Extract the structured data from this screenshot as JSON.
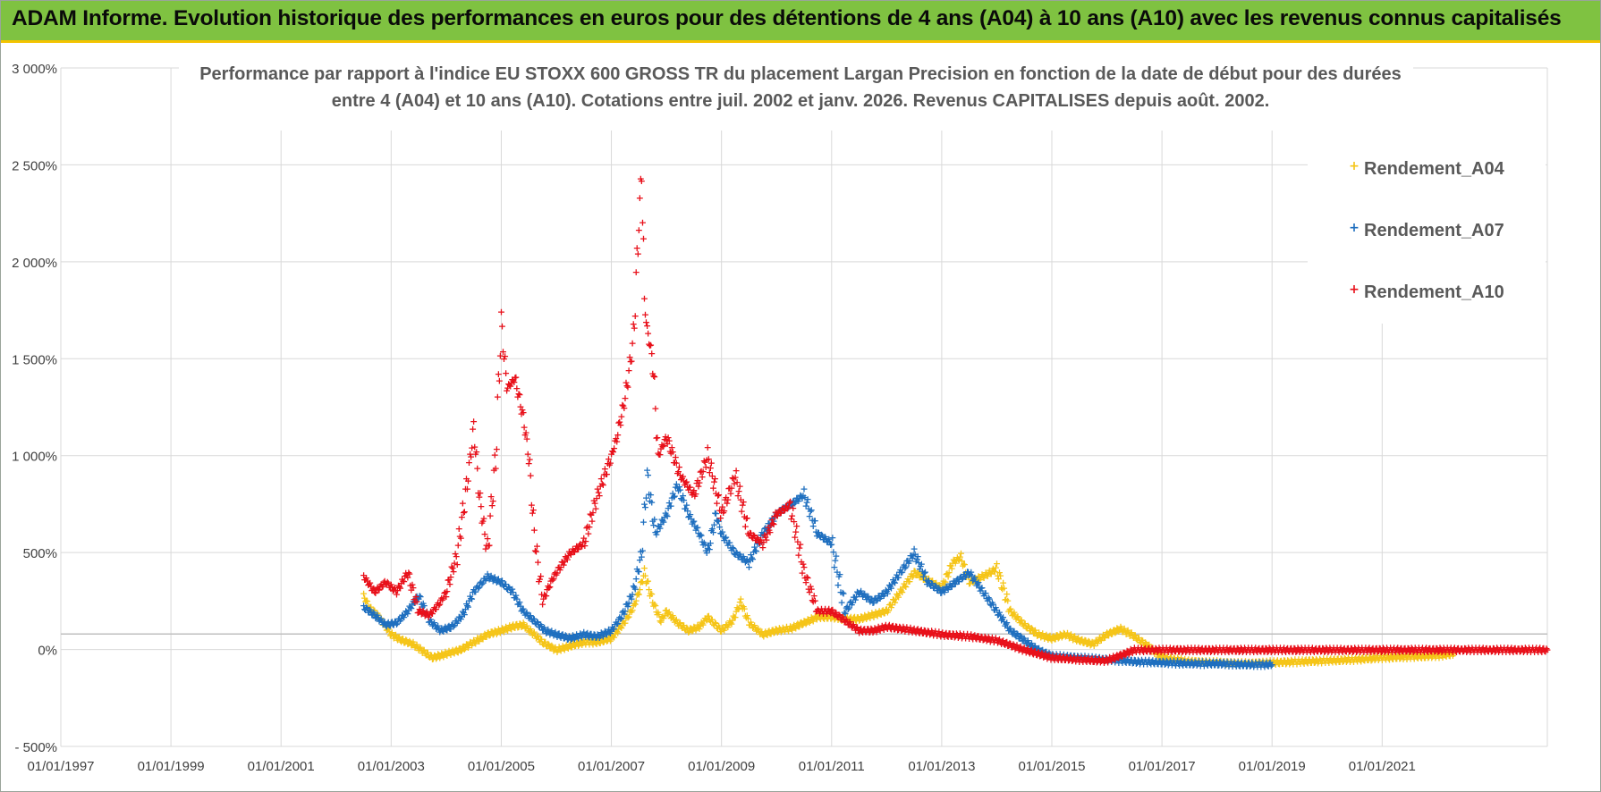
{
  "banner": {
    "title": "ADAM Informe. Evolution historique des performances en euros pour des détentions de 4 ans (A04) à 10 ans (A10) avec les revenus connus capitalisés"
  },
  "colors": {
    "banner_bg": "#7fc241",
    "banner_border": "#f3c300",
    "A04": "#f5c518",
    "A07": "#1f6fbf",
    "A10": "#e8101a",
    "grid": "#d9d9d9",
    "axis_text": "#404040"
  },
  "chart_data": {
    "type": "scatter",
    "title_lines": [
      "Performance par rapport à l'indice EU STOXX 600 GROSS TR  du placement Largan Precision  en fonction de la date de début pour des durées",
      "entre 4 (A04) et 10 ans (A10).  Cotations entre juil. 2002 et janv. 2026. Revenus CAPITALISES depuis août. 2002."
    ],
    "xlabel": "",
    "ylabel": "",
    "xlim": [
      1997.0,
      2024.0
    ],
    "ylim": [
      -500,
      3000
    ],
    "y_ticks": [
      -500,
      0,
      500,
      1000,
      1500,
      2000,
      2500,
      3000
    ],
    "y_tick_labels": [
      "- 500%",
      "0%",
      "500%",
      "1 000%",
      "1 500%",
      "2 000%",
      "2 500%",
      "3 000%"
    ],
    "x_ticks": [
      1997,
      1999,
      2001,
      2003,
      2005,
      2007,
      2009,
      2011,
      2013,
      2015,
      2017,
      2019,
      2021
    ],
    "x_tick_labels": [
      "01/01/1997",
      "01/01/1999",
      "01/01/2001",
      "01/01/2003",
      "01/01/2005",
      "01/01/2007",
      "01/01/2009",
      "01/01/2011",
      "01/01/2013",
      "01/01/2015",
      "01/01/2017",
      "01/01/2019",
      "01/01/2021"
    ],
    "reference_line_y": 80,
    "legend_position": "top-right",
    "series": [
      {
        "name": "Rendement_A04",
        "color_key": "A04",
        "x": [
          2002.5,
          2002.6,
          2002.75,
          2002.9,
          2003.0,
          2003.2,
          2003.4,
          2003.5,
          2003.75,
          2004.0,
          2004.25,
          2004.5,
          2004.75,
          2005.0,
          2005.2,
          2005.4,
          2005.6,
          2005.75,
          2006.0,
          2006.25,
          2006.5,
          2006.75,
          2007.0,
          2007.25,
          2007.4,
          2007.5,
          2007.6,
          2007.75,
          2007.9,
          2008.0,
          2008.2,
          2008.4,
          2008.6,
          2008.75,
          2009.0,
          2009.2,
          2009.35,
          2009.5,
          2009.75,
          2010.0,
          2010.25,
          2010.5,
          2010.75,
          2011.0,
          2011.25,
          2011.5,
          2011.75,
          2012.0,
          2012.25,
          2012.5,
          2012.75,
          2013.0,
          2013.2,
          2013.35,
          2013.5,
          2013.75,
          2014.0,
          2014.25,
          2014.5,
          2014.75,
          2015.0,
          2015.25,
          2015.5,
          2015.75,
          2016.0,
          2016.25,
          2016.5,
          2016.75,
          2017.0,
          2017.5,
          2018.0,
          2018.5,
          2019.0,
          2019.5,
          2020.0,
          2020.5,
          2021.0,
          2021.5,
          2022.0,
          2022.3
        ],
        "values": [
          280,
          220,
          180,
          120,
          80,
          50,
          30,
          10,
          -40,
          -20,
          0,
          40,
          80,
          100,
          120,
          130,
          80,
          40,
          0,
          20,
          40,
          40,
          60,
          150,
          220,
          300,
          400,
          250,
          150,
          200,
          140,
          100,
          120,
          170,
          100,
          150,
          250,
          140,
          80,
          100,
          110,
          140,
          170,
          170,
          160,
          160,
          180,
          200,
          300,
          400,
          360,
          320,
          450,
          480,
          350,
          380,
          420,
          200,
          130,
          80,
          60,
          80,
          50,
          30,
          80,
          110,
          70,
          20,
          -40,
          -60,
          -65,
          -70,
          -65,
          -60,
          -55,
          -50,
          -40,
          -35,
          -30,
          -20
        ]
      },
      {
        "name": "Rendement_A07",
        "color_key": "A07",
        "x": [
          2002.5,
          2002.7,
          2002.9,
          2003.1,
          2003.3,
          2003.5,
          2003.7,
          2003.9,
          2004.1,
          2004.3,
          2004.5,
          2004.75,
          2005.0,
          2005.2,
          2005.4,
          2005.6,
          2005.8,
          2006.0,
          2006.25,
          2006.5,
          2006.75,
          2007.0,
          2007.2,
          2007.4,
          2007.55,
          2007.65,
          2007.8,
          2008.0,
          2008.2,
          2008.4,
          2008.6,
          2008.75,
          2008.9,
          2009.0,
          2009.25,
          2009.5,
          2009.75,
          2010.0,
          2010.25,
          2010.5,
          2010.75,
          2011.0,
          2011.25,
          2011.5,
          2011.75,
          2012.0,
          2012.25,
          2012.5,
          2012.75,
          2013.0,
          2013.25,
          2013.5,
          2013.75,
          2014.0,
          2014.25,
          2014.5,
          2014.75,
          2015.0,
          2015.5,
          2016.0,
          2016.5,
          2017.0,
          2017.5,
          2018.0,
          2018.5,
          2019.0
        ],
        "values": [
          220,
          180,
          130,
          140,
          200,
          280,
          150,
          100,
          120,
          180,
          300,
          380,
          350,
          300,
          200,
          150,
          100,
          80,
          60,
          80,
          70,
          100,
          180,
          300,
          500,
          900,
          600,
          700,
          850,
          700,
          600,
          500,
          700,
          600,
          500,
          450,
          600,
          700,
          750,
          800,
          600,
          550,
          200,
          300,
          250,
          300,
          400,
          500,
          350,
          300,
          350,
          400,
          300,
          200,
          100,
          50,
          0,
          -30,
          -40,
          -50,
          -60,
          -65,
          -70,
          -70,
          -75,
          -75
        ]
      },
      {
        "name": "Rendement_A10",
        "color_key": "A10",
        "x": [
          2002.5,
          2002.7,
          2002.9,
          2003.1,
          2003.3,
          2003.5,
          2003.7,
          2003.9,
          2004.0,
          2004.2,
          2004.4,
          2004.5,
          2004.6,
          2004.75,
          2004.9,
          2005.0,
          2005.1,
          2005.25,
          2005.4,
          2005.5,
          2005.6,
          2005.75,
          2005.9,
          2006.0,
          2006.25,
          2006.5,
          2006.75,
          2007.0,
          2007.1,
          2007.25,
          2007.4,
          2007.5,
          2007.55,
          2007.6,
          2007.65,
          2007.75,
          2007.85,
          2008.0,
          2008.25,
          2008.5,
          2008.75,
          2009.0,
          2009.25,
          2009.5,
          2009.75,
          2010.0,
          2010.25,
          2010.5,
          2010.75,
          2011.0,
          2011.25,
          2011.5,
          2011.75,
          2012.0,
          2012.5,
          2013.0,
          2013.5,
          2014.0,
          2014.5,
          2015.0,
          2015.5,
          2016.0,
          2016.5,
          2017.0,
          2018.0,
          2019.0,
          2020.0,
          2021.0,
          2022.0,
          2023.0,
          2024.0
        ],
        "values": [
          380,
          300,
          350,
          300,
          400,
          200,
          180,
          250,
          300,
          500,
          900,
          1150,
          800,
          500,
          1000,
          1700,
          1350,
          1400,
          1200,
          1000,
          600,
          250,
          350,
          400,
          500,
          550,
          800,
          1000,
          1100,
          1300,
          1600,
          2200,
          2500,
          1800,
          1650,
          1500,
          1000,
          1100,
          900,
          800,
          1000,
          700,
          900,
          600,
          550,
          700,
          750,
          400,
          200,
          200,
          150,
          100,
          100,
          120,
          100,
          80,
          70,
          50,
          0,
          -40,
          -50,
          -55,
          0,
          0,
          0,
          0,
          0,
          0,
          0,
          0,
          0
        ]
      }
    ]
  }
}
